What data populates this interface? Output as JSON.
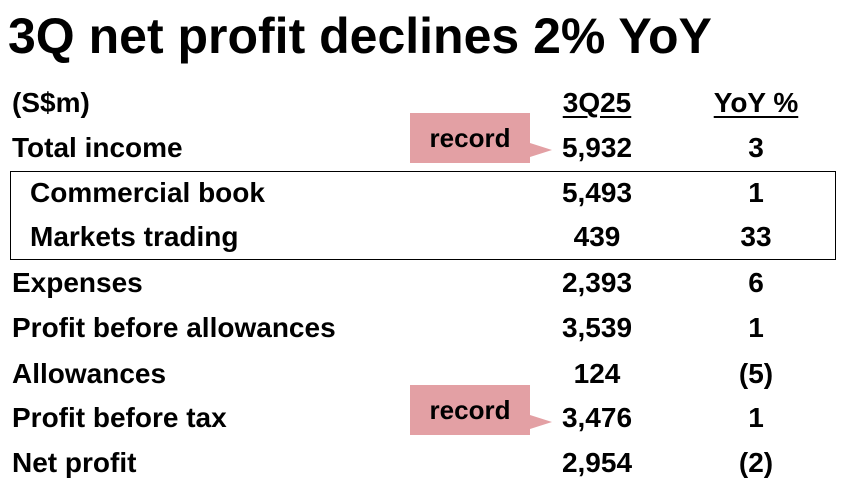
{
  "title": "3Q net profit declines 2% YoY",
  "header": {
    "unit": "(S$m)",
    "col1": "3Q25",
    "col2": "YoY %"
  },
  "rows": [
    {
      "label": "Total income",
      "value": "5,932",
      "yoy": "3"
    },
    {
      "label": "Commercial book",
      "value": "5,493",
      "yoy": "1"
    },
    {
      "label": "Markets trading",
      "value": "439",
      "yoy": "33"
    },
    {
      "label": "Expenses",
      "value": "2,393",
      "yoy": "6"
    },
    {
      "label": "Profit before allowances",
      "value": "3,539",
      "yoy": "1"
    },
    {
      "label": "Allowances",
      "value": "124",
      "yoy": "(5)"
    },
    {
      "label": "Profit before tax",
      "value": "3,476",
      "yoy": "1"
    },
    {
      "label": "Net profit",
      "value": "2,954",
      "yoy": "(2)"
    }
  ],
  "callouts": [
    {
      "text": "record"
    },
    {
      "text": "record"
    }
  ],
  "colors": {
    "callout": "#e3a0a4"
  }
}
